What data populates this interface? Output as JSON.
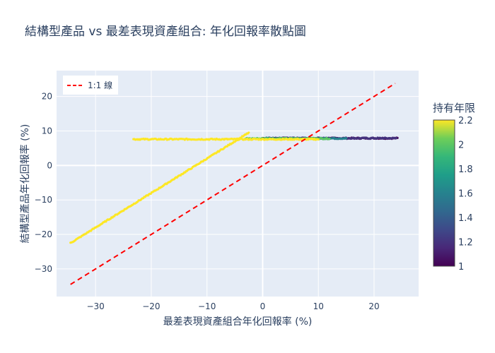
{
  "chart_data": {
    "type": "scatter",
    "title": "結構型產品 vs 最差表現資產組合: 年化回報率散點圖",
    "xlabel": "最差表現資產組合年化回報率 (%)",
    "ylabel": "結構型產品年化回報率 (%)",
    "xlim": [
      -37,
      28
    ],
    "ylim": [
      -38,
      27.5
    ],
    "x_ticks": [
      -30,
      -20,
      -10,
      0,
      10,
      20
    ],
    "y_ticks": [
      -30,
      -20,
      -10,
      0,
      10,
      20
    ],
    "x_tick_labels": [
      "−30",
      "−20",
      "−10",
      "0",
      "10",
      "20"
    ],
    "y_tick_labels": [
      "−30",
      "−20",
      "−10",
      "0",
      "10",
      "20"
    ],
    "grid": true,
    "legend": {
      "position": "top-left",
      "entries": [
        "1:1 線"
      ]
    },
    "reference_line": {
      "name": "1:1 線",
      "x": [
        -34.5,
        23.8
      ],
      "y": [
        -34.5,
        23.8
      ],
      "color": "#ff0000",
      "dash": "dash"
    },
    "colorbar": {
      "title": "持有年限",
      "min": 1,
      "max": 2.2,
      "ticks": [
        1,
        1.2,
        1.4,
        1.6,
        1.8,
        2,
        2.2
      ],
      "colorscale": "Viridis"
    },
    "series": [
      {
        "holding_years": 1.0,
        "x_range": [
          0,
          24.2
        ],
        "y_value": 7.9,
        "type": "flat"
      },
      {
        "holding_years": 1.2,
        "x_range": [
          0,
          24.0
        ],
        "y_value": 7.9,
        "type": "flat"
      },
      {
        "holding_years": 1.6,
        "x_range": [
          0,
          15.0
        ],
        "y_value": 7.85,
        "type": "flat"
      },
      {
        "holding_years": 2.0,
        "x_range": [
          -3,
          12.0
        ],
        "y_value": 7.8,
        "type": "flat"
      },
      {
        "holding_years": 2.2,
        "x_range": [
          -23.2,
          10.0
        ],
        "y_value": 7.6,
        "type": "flat"
      },
      {
        "holding_years": 2.2,
        "x_range": [
          -34.5,
          -2.5
        ],
        "y_offset": 12.0,
        "type": "diagonal"
      }
    ]
  }
}
